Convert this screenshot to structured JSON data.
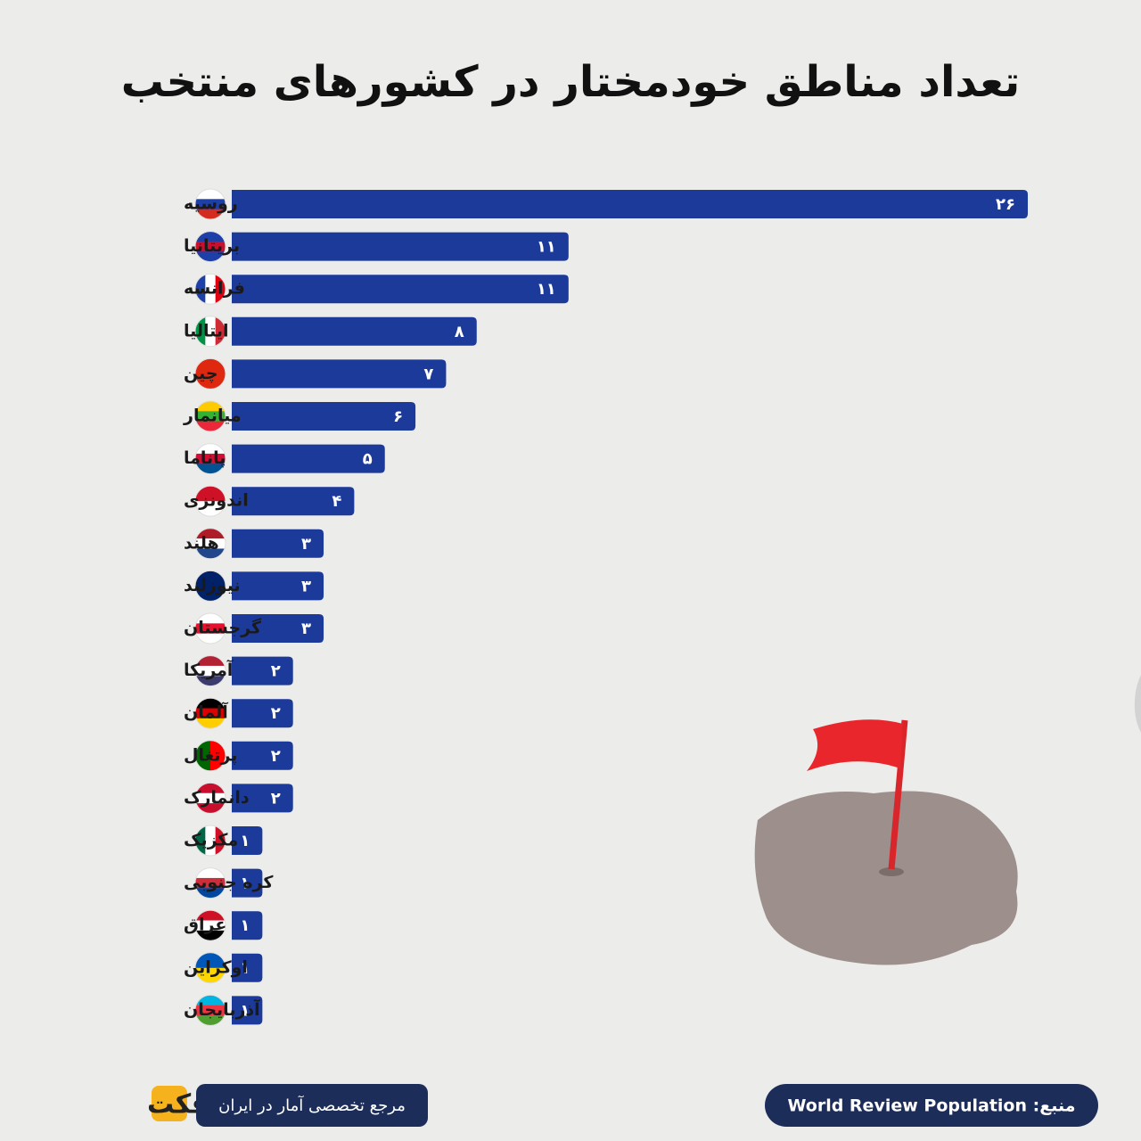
{
  "chart_data": {
    "type": "bar",
    "orientation": "horizontal",
    "title": "تعداد مناطق خودمختار در کشورهای منتخب",
    "categories": [
      "روسیه",
      "بریتانیا",
      "فرانسه",
      "ایتالیا",
      "چین",
      "میانمار",
      "پاناما",
      "اندونزی",
      "هلند",
      "نیوزلند",
      "گرجستان",
      "آمریکا",
      "آلمان",
      "پرتغال",
      "دانمارک",
      "مکزیک",
      "کره جنوبی",
      "عراق",
      "اوکراین",
      "آذربایجان"
    ],
    "values": [
      26,
      11,
      11,
      8,
      7,
      6,
      5,
      4,
      3,
      3,
      3,
      2,
      2,
      2,
      2,
      1,
      1,
      1,
      1,
      1
    ],
    "value_labels": [
      "۲۶",
      "۱۱",
      "۱۱",
      "۸",
      "۷",
      "۶",
      "۵",
      "۴",
      "۳",
      "۳",
      "۳",
      "۲",
      "۲",
      "۲",
      "۲",
      "۱",
      "۱",
      "۱",
      "۱",
      "۱"
    ],
    "color": "#1b3a9a",
    "source": "منبع: World Review Population",
    "tagline": "مرجع تخصصی آمار در ایران",
    "brand": "آمارفکت"
  }
}
